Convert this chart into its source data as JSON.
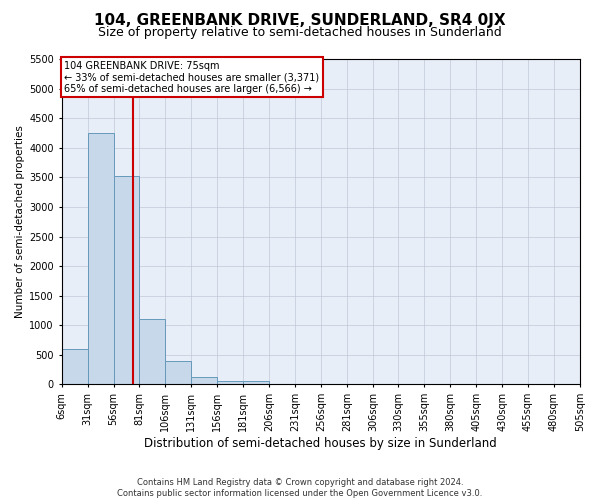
{
  "title": "104, GREENBANK DRIVE, SUNDERLAND, SR4 0JX",
  "subtitle": "Size of property relative to semi-detached houses in Sunderland",
  "xlabel": "Distribution of semi-detached houses by size in Sunderland",
  "ylabel": "Number of semi-detached properties",
  "footnote": "Contains HM Land Registry data © Crown copyright and database right 2024.\nContains public sector information licensed under the Open Government Licence v3.0.",
  "property_size": 75,
  "annotation_line1": "104 GREENBANK DRIVE: 75sqm",
  "annotation_line2": "← 33% of semi-detached houses are smaller (3,371)",
  "annotation_line3": "65% of semi-detached houses are larger (6,566) →",
  "bar_color": "#c8d8eb",
  "bar_edge_color": "#6699bb",
  "vline_color": "#cc0000",
  "annotation_box_edgecolor": "#cc0000",
  "bin_edges": [
    6,
    31,
    56,
    81,
    106,
    131,
    156,
    181,
    206,
    231,
    256,
    281,
    306,
    330,
    355,
    380,
    405,
    430,
    455,
    480,
    505
  ],
  "bin_labels": [
    "6sqm",
    "31sqm",
    "56sqm",
    "81sqm",
    "106sqm",
    "131sqm",
    "156sqm",
    "181sqm",
    "206sqm",
    "231sqm",
    "256sqm",
    "281sqm",
    "306sqm",
    "330sqm",
    "355sqm",
    "380sqm",
    "405sqm",
    "430sqm",
    "455sqm",
    "480sqm",
    "505sqm"
  ],
  "bar_heights": [
    600,
    4250,
    3530,
    1100,
    390,
    130,
    60,
    55,
    0,
    0,
    0,
    0,
    0,
    0,
    0,
    0,
    0,
    0,
    0,
    0
  ],
  "ylim": [
    0,
    5500
  ],
  "yticks": [
    0,
    500,
    1000,
    1500,
    2000,
    2500,
    3000,
    3500,
    4000,
    4500,
    5000,
    5500
  ],
  "background_color": "#ffffff",
  "plot_bg_color": "#e8eef8",
  "grid_color": "#c0c8d8",
  "title_fontsize": 11,
  "subtitle_fontsize": 9,
  "ylabel_fontsize": 7.5,
  "xlabel_fontsize": 8.5,
  "tick_fontsize": 7,
  "annotation_fontsize": 7,
  "footnote_fontsize": 6
}
